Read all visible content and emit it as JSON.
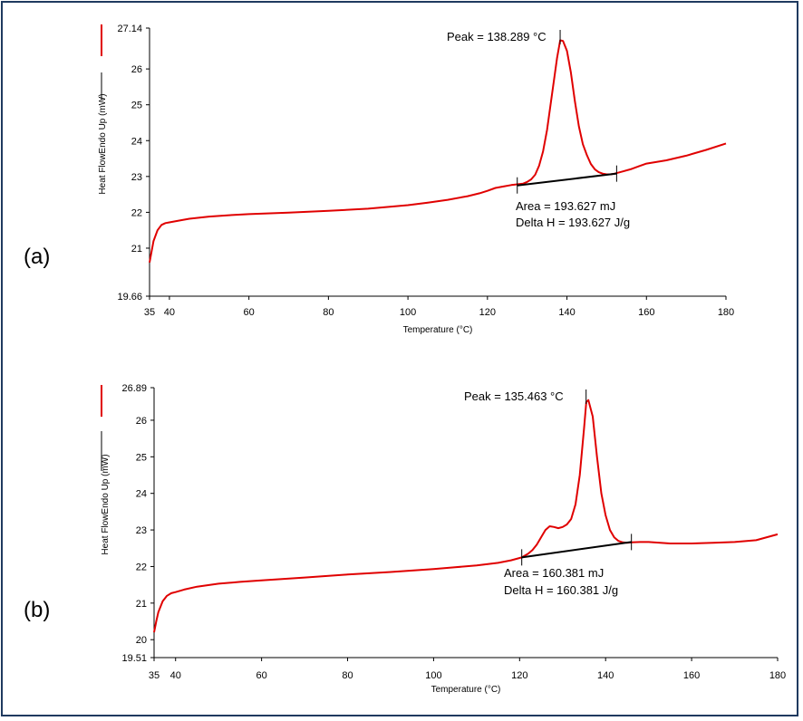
{
  "chart_data": [
    {
      "panel_label": "(a)",
      "type": "line",
      "xlabel": "Temperature (°C)",
      "ylabel": "Heat FlowEndo Up (mW)",
      "xlim": [
        35,
        180
      ],
      "ylim": [
        19.66,
        27.14
      ],
      "x_ticks": [
        35,
        40,
        60,
        80,
        100,
        120,
        140,
        160,
        180
      ],
      "y_ticks": [
        19.66,
        21,
        22,
        23,
        24,
        25,
        26,
        27.14
      ],
      "series": [
        {
          "color": "#e00000",
          "x": [
            35,
            35.5,
            36,
            37,
            38,
            39,
            40,
            42,
            45,
            50,
            55,
            60,
            70,
            80,
            90,
            100,
            105,
            110,
            115,
            118,
            120,
            122,
            124,
            126,
            127.5,
            129,
            130,
            131,
            132,
            133,
            134,
            135,
            136,
            137,
            137.5,
            138.3,
            139,
            140,
            141,
            142,
            143,
            144,
            145,
            146,
            147,
            148,
            149,
            150,
            151,
            152,
            154,
            156,
            158,
            160,
            165,
            170,
            175,
            180
          ],
          "y": [
            20.6,
            20.9,
            21.2,
            21.5,
            21.65,
            21.7,
            21.72,
            21.76,
            21.82,
            21.88,
            21.92,
            21.95,
            21.99,
            22.04,
            22.1,
            22.2,
            22.27,
            22.35,
            22.45,
            22.53,
            22.6,
            22.68,
            22.72,
            22.76,
            22.78,
            22.8,
            22.85,
            22.92,
            23.05,
            23.3,
            23.7,
            24.3,
            25.1,
            25.9,
            26.3,
            26.8,
            26.78,
            26.5,
            25.9,
            25.1,
            24.4,
            23.9,
            23.6,
            23.35,
            23.2,
            23.12,
            23.08,
            23.06,
            23.06,
            23.08,
            23.14,
            23.2,
            23.28,
            23.36,
            23.45,
            23.58,
            23.74,
            23.92
          ]
        }
      ],
      "baseline": {
        "x": [
          127.5,
          152.5
        ],
        "y": [
          22.75,
          23.08
        ]
      },
      "peak": {
        "x": 138.289,
        "label": "Peak = 138.289 °C"
      },
      "annotations": [
        "Area = 193.627 mJ",
        "Delta H = 193.627 J/g"
      ]
    },
    {
      "panel_label": "(b)",
      "type": "line",
      "xlabel": "Temperature (°C)",
      "ylabel": "Heat FlowEndo Up (mW)",
      "xlim": [
        35,
        180
      ],
      "ylim": [
        19.51,
        26.89
      ],
      "x_ticks": [
        35,
        40,
        60,
        80,
        100,
        120,
        140,
        160,
        180
      ],
      "y_ticks": [
        19.51,
        20,
        21,
        22,
        23,
        24,
        25,
        26,
        26.89
      ],
      "series": [
        {
          "color": "#e00000",
          "x": [
            35,
            35.5,
            36,
            37,
            38,
            39,
            40,
            42,
            45,
            50,
            55,
            60,
            70,
            80,
            90,
            100,
            105,
            110,
            115,
            118,
            120.5,
            122,
            123,
            124,
            125,
            126,
            127,
            128,
            129,
            130,
            131,
            132,
            133,
            134,
            135,
            135.5,
            136,
            137,
            138,
            139,
            140,
            141,
            142,
            143,
            144,
            145,
            146,
            148,
            150,
            155,
            160,
            165,
            170,
            175,
            180
          ],
          "y": [
            20.2,
            20.5,
            20.75,
            21.05,
            21.2,
            21.27,
            21.3,
            21.37,
            21.45,
            21.53,
            21.58,
            21.62,
            21.7,
            21.78,
            21.85,
            21.93,
            21.98,
            22.03,
            22.1,
            22.17,
            22.25,
            22.35,
            22.45,
            22.6,
            22.8,
            23.0,
            23.1,
            23.08,
            23.05,
            23.08,
            23.15,
            23.3,
            23.7,
            24.5,
            25.8,
            26.5,
            26.55,
            26.1,
            25.0,
            24.0,
            23.4,
            23.0,
            22.8,
            22.7,
            22.66,
            22.65,
            22.66,
            22.67,
            22.67,
            22.63,
            22.63,
            22.65,
            22.67,
            22.72,
            22.88
          ]
        }
      ],
      "baseline": {
        "x": [
          120.5,
          146
        ],
        "y": [
          22.25,
          22.67
        ]
      },
      "peak": {
        "x": 135.463,
        "label": "Peak = 135.463 °C"
      },
      "annotations": [
        "Area = 160.381 mJ",
        "Delta H = 160.381 J/g"
      ]
    }
  ]
}
